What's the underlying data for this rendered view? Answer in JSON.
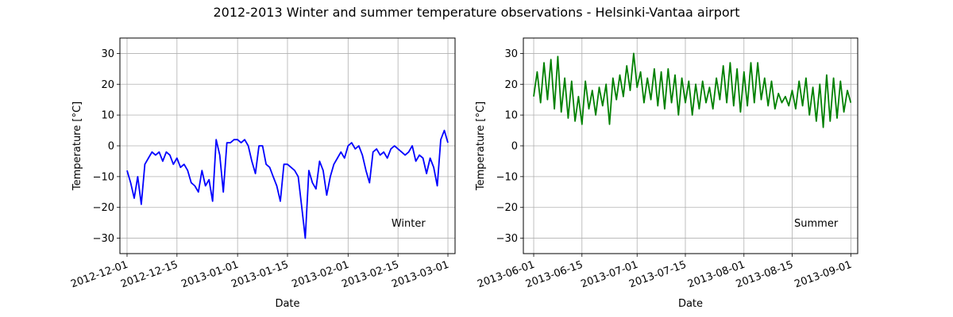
{
  "figure": {
    "title": "2012-2013 Winter and summer temperature observations - Helsinki-Vantaa airport"
  },
  "chart_data": [
    {
      "type": "line",
      "xlabel": "Date",
      "ylabel": "Temperature [°C]",
      "annotation": "Winter",
      "xlim": [
        "2012-11-29",
        "2013-03-03"
      ],
      "ylim": [
        -35,
        35
      ],
      "xticks": [
        "2012-12-01",
        "2012-12-15",
        "2013-01-01",
        "2013-01-15",
        "2013-02-01",
        "2013-02-15",
        "2013-03-01"
      ],
      "yticks": [
        -30,
        -20,
        -10,
        0,
        10,
        20,
        30
      ],
      "grid": true,
      "series": [
        {
          "color": "#0000ff",
          "points": [
            [
              "2012-12-01",
              -8
            ],
            [
              "2012-12-02",
              -12
            ],
            [
              "2012-12-03",
              -17
            ],
            [
              "2012-12-04",
              -10
            ],
            [
              "2012-12-05",
              -19
            ],
            [
              "2012-12-06",
              -6
            ],
            [
              "2012-12-07",
              -4
            ],
            [
              "2012-12-08",
              -2
            ],
            [
              "2012-12-09",
              -3
            ],
            [
              "2012-12-10",
              -2
            ],
            [
              "2012-12-11",
              -5
            ],
            [
              "2012-12-12",
              -2
            ],
            [
              "2012-12-13",
              -3
            ],
            [
              "2012-12-14",
              -6
            ],
            [
              "2012-12-15",
              -4
            ],
            [
              "2012-12-16",
              -7
            ],
            [
              "2012-12-17",
              -6
            ],
            [
              "2012-12-18",
              -8
            ],
            [
              "2012-12-19",
              -12
            ],
            [
              "2012-12-20",
              -13
            ],
            [
              "2012-12-21",
              -15
            ],
            [
              "2012-12-22",
              -8
            ],
            [
              "2012-12-23",
              -13
            ],
            [
              "2012-12-24",
              -11
            ],
            [
              "2012-12-25",
              -18
            ],
            [
              "2012-12-26",
              2
            ],
            [
              "2012-12-27",
              -3
            ],
            [
              "2012-12-28",
              -15
            ],
            [
              "2012-12-29",
              1
            ],
            [
              "2012-12-30",
              1
            ],
            [
              "2012-12-31",
              2
            ],
            [
              "2013-01-01",
              2
            ],
            [
              "2013-01-02",
              1
            ],
            [
              "2013-01-03",
              2
            ],
            [
              "2013-01-04",
              0
            ],
            [
              "2013-01-05",
              -5
            ],
            [
              "2013-01-06",
              -9
            ],
            [
              "2013-01-07",
              0
            ],
            [
              "2013-01-08",
              0
            ],
            [
              "2013-01-09",
              -6
            ],
            [
              "2013-01-10",
              -7
            ],
            [
              "2013-01-11",
              -10
            ],
            [
              "2013-01-12",
              -13
            ],
            [
              "2013-01-13",
              -18
            ],
            [
              "2013-01-14",
              -6
            ],
            [
              "2013-01-15",
              -6
            ],
            [
              "2013-01-16",
              -7
            ],
            [
              "2013-01-17",
              -8
            ],
            [
              "2013-01-18",
              -10
            ],
            [
              "2013-01-19",
              -20
            ],
            [
              "2013-01-20",
              -30
            ],
            [
              "2013-01-21",
              -8
            ],
            [
              "2013-01-22",
              -12
            ],
            [
              "2013-01-23",
              -14
            ],
            [
              "2013-01-24",
              -5
            ],
            [
              "2013-01-25",
              -8
            ],
            [
              "2013-01-26",
              -16
            ],
            [
              "2013-01-27",
              -10
            ],
            [
              "2013-01-28",
              -6
            ],
            [
              "2013-01-29",
              -4
            ],
            [
              "2013-01-30",
              -2
            ],
            [
              "2013-01-31",
              -4
            ],
            [
              "2013-02-01",
              0
            ],
            [
              "2013-02-02",
              1
            ],
            [
              "2013-02-03",
              -1
            ],
            [
              "2013-02-04",
              0
            ],
            [
              "2013-02-05",
              -3
            ],
            [
              "2013-02-06",
              -8
            ],
            [
              "2013-02-07",
              -12
            ],
            [
              "2013-02-08",
              -2
            ],
            [
              "2013-02-09",
              -1
            ],
            [
              "2013-02-10",
              -3
            ],
            [
              "2013-02-11",
              -2
            ],
            [
              "2013-02-12",
              -4
            ],
            [
              "2013-02-13",
              -1
            ],
            [
              "2013-02-14",
              0
            ],
            [
              "2013-02-15",
              -1
            ],
            [
              "2013-02-16",
              -2
            ],
            [
              "2013-02-17",
              -3
            ],
            [
              "2013-02-18",
              -2
            ],
            [
              "2013-02-19",
              0
            ],
            [
              "2013-02-20",
              -5
            ],
            [
              "2013-02-21",
              -3
            ],
            [
              "2013-02-22",
              -4
            ],
            [
              "2013-02-23",
              -9
            ],
            [
              "2013-02-24",
              -4
            ],
            [
              "2013-02-25",
              -7
            ],
            [
              "2013-02-26",
              -13
            ],
            [
              "2013-02-27",
              2
            ],
            [
              "2013-02-28",
              5
            ],
            [
              "2013-03-01",
              1
            ]
          ]
        }
      ]
    },
    {
      "type": "line",
      "xlabel": "Date",
      "ylabel": "Temperature [°C]",
      "annotation": "Summer",
      "xlim": [
        "2013-05-29",
        "2013-09-03"
      ],
      "ylim": [
        -35,
        35
      ],
      "xticks": [
        "2013-06-01",
        "2013-06-15",
        "2013-07-01",
        "2013-07-15",
        "2013-08-01",
        "2013-08-15",
        "2013-09-01"
      ],
      "yticks": [
        -30,
        -20,
        -10,
        0,
        10,
        20,
        30
      ],
      "grid": true,
      "series": [
        {
          "color": "#008000",
          "points": [
            [
              "2013-06-01",
              16
            ],
            [
              "2013-06-02",
              24
            ],
            [
              "2013-06-03",
              14
            ],
            [
              "2013-06-04",
              27
            ],
            [
              "2013-06-05",
              15
            ],
            [
              "2013-06-06",
              28
            ],
            [
              "2013-06-07",
              12
            ],
            [
              "2013-06-08",
              29
            ],
            [
              "2013-06-09",
              11
            ],
            [
              "2013-06-10",
              22
            ],
            [
              "2013-06-11",
              9
            ],
            [
              "2013-06-12",
              21
            ],
            [
              "2013-06-13",
              8
            ],
            [
              "2013-06-14",
              16
            ],
            [
              "2013-06-15",
              7
            ],
            [
              "2013-06-16",
              21
            ],
            [
              "2013-06-17",
              12
            ],
            [
              "2013-06-18",
              18
            ],
            [
              "2013-06-19",
              10
            ],
            [
              "2013-06-20",
              19
            ],
            [
              "2013-06-21",
              13
            ],
            [
              "2013-06-22",
              20
            ],
            [
              "2013-06-23",
              7
            ],
            [
              "2013-06-24",
              22
            ],
            [
              "2013-06-25",
              15
            ],
            [
              "2013-06-26",
              23
            ],
            [
              "2013-06-27",
              16
            ],
            [
              "2013-06-28",
              26
            ],
            [
              "2013-06-29",
              18
            ],
            [
              "2013-06-30",
              30
            ],
            [
              "2013-07-01",
              19
            ],
            [
              "2013-07-02",
              24
            ],
            [
              "2013-07-03",
              14
            ],
            [
              "2013-07-04",
              22
            ],
            [
              "2013-07-05",
              15
            ],
            [
              "2013-07-06",
              25
            ],
            [
              "2013-07-07",
              13
            ],
            [
              "2013-07-08",
              24
            ],
            [
              "2013-07-09",
              12
            ],
            [
              "2013-07-10",
              25
            ],
            [
              "2013-07-11",
              14
            ],
            [
              "2013-07-12",
              23
            ],
            [
              "2013-07-13",
              10
            ],
            [
              "2013-07-14",
              22
            ],
            [
              "2013-07-15",
              14
            ],
            [
              "2013-07-16",
              21
            ],
            [
              "2013-07-17",
              10
            ],
            [
              "2013-07-18",
              20
            ],
            [
              "2013-07-19",
              12
            ],
            [
              "2013-07-20",
              21
            ],
            [
              "2013-07-21",
              14
            ],
            [
              "2013-07-22",
              19
            ],
            [
              "2013-07-23",
              12
            ],
            [
              "2013-07-24",
              22
            ],
            [
              "2013-07-25",
              15
            ],
            [
              "2013-07-26",
              26
            ],
            [
              "2013-07-27",
              14
            ],
            [
              "2013-07-28",
              27
            ],
            [
              "2013-07-29",
              13
            ],
            [
              "2013-07-30",
              25
            ],
            [
              "2013-07-31",
              11
            ],
            [
              "2013-08-01",
              24
            ],
            [
              "2013-08-02",
              13
            ],
            [
              "2013-08-03",
              27
            ],
            [
              "2013-08-04",
              14
            ],
            [
              "2013-08-05",
              27
            ],
            [
              "2013-08-06",
              15
            ],
            [
              "2013-08-07",
              22
            ],
            [
              "2013-08-08",
              13
            ],
            [
              "2013-08-09",
              21
            ],
            [
              "2013-08-10",
              12
            ],
            [
              "2013-08-11",
              17
            ],
            [
              "2013-08-12",
              14
            ],
            [
              "2013-08-13",
              16
            ],
            [
              "2013-08-14",
              13
            ],
            [
              "2013-08-15",
              18
            ],
            [
              "2013-08-16",
              12
            ],
            [
              "2013-08-17",
              21
            ],
            [
              "2013-08-18",
              13
            ],
            [
              "2013-08-19",
              22
            ],
            [
              "2013-08-20",
              10
            ],
            [
              "2013-08-21",
              19
            ],
            [
              "2013-08-22",
              8
            ],
            [
              "2013-08-23",
              20
            ],
            [
              "2013-08-24",
              6
            ],
            [
              "2013-08-25",
              23
            ],
            [
              "2013-08-26",
              8
            ],
            [
              "2013-08-27",
              22
            ],
            [
              "2013-08-28",
              9
            ],
            [
              "2013-08-29",
              21
            ],
            [
              "2013-08-30",
              11
            ],
            [
              "2013-08-31",
              18
            ],
            [
              "2013-09-01",
              14
            ]
          ]
        }
      ]
    }
  ]
}
